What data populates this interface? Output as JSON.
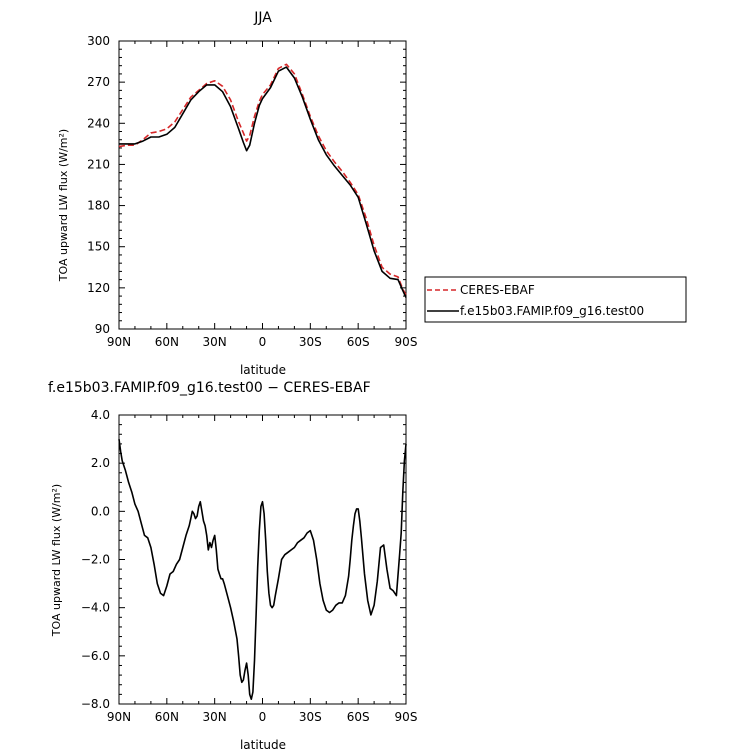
{
  "chart_data": [
    {
      "type": "line",
      "title": "JJA",
      "xlabel": "latitude",
      "ylabel": "TOA upward LW flux (W/m²)",
      "xlim": [
        90,
        -90
      ],
      "ylim": [
        90,
        300
      ],
      "x_ticks": [
        90,
        60,
        30,
        0,
        -30,
        -60,
        -90
      ],
      "x_tick_labels": [
        "90N",
        "60N",
        "30N",
        "0",
        "30S",
        "60S",
        "90S"
      ],
      "y_ticks": [
        90,
        120,
        150,
        180,
        210,
        240,
        270,
        300
      ],
      "y_tick_labels": [
        "90",
        "120",
        "150",
        "180",
        "210",
        "240",
        "270",
        "300"
      ],
      "legend_position": "right",
      "series": [
        {
          "name": "CERES-EBAF",
          "color": "#d62728",
          "dash": "dashed",
          "x": [
            90,
            85,
            80,
            75,
            70,
            65,
            60,
            55,
            50,
            45,
            40,
            35,
            30,
            25,
            20,
            15,
            12,
            10,
            8,
            5,
            2,
            0,
            -5,
            -10,
            -15,
            -20,
            -25,
            -30,
            -35,
            -40,
            -45,
            -50,
            -55,
            -60,
            -65,
            -70,
            -75,
            -80,
            -85,
            -88,
            -90
          ],
          "y": [
            223,
            224,
            224,
            228,
            233,
            234,
            236,
            241,
            250,
            259,
            264,
            269,
            271,
            267,
            257,
            241,
            233,
            227,
            231,
            245,
            256,
            261,
            268,
            280,
            283,
            276,
            261,
            245,
            231,
            220,
            212,
            205,
            197,
            188,
            171,
            151,
            135,
            130,
            128,
            119,
            115
          ]
        },
        {
          "name": "f.e15b03.FAMIP.f09_g16.test00",
          "color": "#000000",
          "dash": "solid",
          "x": [
            90,
            85,
            80,
            75,
            70,
            65,
            60,
            55,
            50,
            45,
            40,
            35,
            30,
            25,
            20,
            15,
            12,
            10,
            8,
            5,
            2,
            0,
            -5,
            -10,
            -15,
            -20,
            -25,
            -30,
            -35,
            -40,
            -45,
            -50,
            -55,
            -60,
            -65,
            -70,
            -75,
            -80,
            -85,
            -88,
            -90
          ],
          "y": [
            225,
            225,
            225,
            227,
            230,
            230,
            232,
            237,
            247,
            257,
            263,
            268,
            268,
            263,
            252,
            236,
            226,
            220,
            224,
            240,
            253,
            258,
            266,
            278,
            281,
            273,
            259,
            243,
            228,
            217,
            209,
            202,
            195,
            186,
            167,
            147,
            132,
            127,
            126,
            118,
            113
          ]
        }
      ]
    },
    {
      "type": "line",
      "title": "f.e15b03.FAMIP.f09_g16.test00 − CERES-EBAF",
      "xlabel": "latitude",
      "ylabel": "TOA upward LW flux (W/m²)",
      "xlim": [
        90,
        -90
      ],
      "ylim": [
        -8.0,
        4.0
      ],
      "x_ticks": [
        90,
        60,
        30,
        0,
        -30,
        -60,
        -90
      ],
      "x_tick_labels": [
        "90N",
        "60N",
        "30N",
        "0",
        "30S",
        "60S",
        "90S"
      ],
      "y_ticks": [
        -8.0,
        -6.0,
        -4.0,
        -2.0,
        0.0,
        2.0,
        4.0
      ],
      "y_tick_labels": [
        "−8.0",
        "−6.0",
        "−4.0",
        "−2.0",
        "0.0",
        "2.0",
        "4.0"
      ],
      "series": [
        {
          "color": "#000000",
          "x": [
            90,
            89,
            88,
            86,
            84,
            82,
            80,
            78,
            76,
            74,
            72,
            70,
            68,
            66,
            64,
            62,
            60,
            58,
            56,
            54,
            52,
            50,
            48,
            46,
            45,
            44,
            43,
            42,
            41,
            40,
            39,
            38,
            37,
            36,
            35,
            34,
            33,
            32,
            31,
            30,
            29,
            28,
            27,
            26,
            25,
            24,
            22,
            20,
            18,
            16,
            15,
            14,
            13,
            12,
            11,
            10,
            9,
            8,
            7,
            6,
            5,
            4,
            3,
            2,
            1,
            0,
            -1,
            -2,
            -3,
            -4,
            -5,
            -6,
            -7,
            -8,
            -10,
            -12,
            -14,
            -16,
            -18,
            -20,
            -22,
            -24,
            -26,
            -28,
            -30,
            -32,
            -34,
            -36,
            -38,
            -40,
            -42,
            -44,
            -46,
            -48,
            -50,
            -52,
            -54,
            -55,
            -56,
            -57,
            -58,
            -59,
            -60,
            -61,
            -62,
            -64,
            -66,
            -68,
            -70,
            -72,
            -74,
            -76,
            -78,
            -80,
            -82,
            -84,
            -86,
            -87,
            -88,
            -89,
            -90
          ],
          "y": [
            3.0,
            2.5,
            2.1,
            1.7,
            1.2,
            0.8,
            0.3,
            0.0,
            -0.5,
            -1.0,
            -1.1,
            -1.5,
            -2.2,
            -3.0,
            -3.4,
            -3.5,
            -3.1,
            -2.6,
            -2.5,
            -2.2,
            -2.0,
            -1.5,
            -1.0,
            -0.6,
            -0.3,
            0.0,
            -0.1,
            -0.3,
            -0.2,
            0.2,
            0.4,
            0.0,
            -0.4,
            -0.6,
            -1.0,
            -1.6,
            -1.3,
            -1.5,
            -1.2,
            -1.0,
            -1.6,
            -2.4,
            -2.6,
            -2.8,
            -2.8,
            -3.0,
            -3.5,
            -4.0,
            -4.6,
            -5.3,
            -6.0,
            -6.8,
            -7.1,
            -7.0,
            -6.6,
            -6.3,
            -6.8,
            -7.6,
            -7.8,
            -7.5,
            -6.2,
            -4.3,
            -2.3,
            -0.8,
            0.2,
            0.4,
            -0.1,
            -1.2,
            -2.5,
            -3.4,
            -3.9,
            -4.0,
            -3.9,
            -3.5,
            -2.8,
            -2.0,
            -1.8,
            -1.7,
            -1.6,
            -1.5,
            -1.3,
            -1.2,
            -1.1,
            -0.9,
            -0.8,
            -1.2,
            -2.0,
            -3.0,
            -3.7,
            -4.1,
            -4.2,
            -4.1,
            -3.9,
            -3.8,
            -3.8,
            -3.5,
            -2.7,
            -2.0,
            -1.2,
            -0.6,
            -0.1,
            0.1,
            0.1,
            -0.4,
            -1.1,
            -2.6,
            -3.7,
            -4.3,
            -3.9,
            -2.9,
            -1.5,
            -1.4,
            -2.4,
            -3.2,
            -3.3,
            -3.5,
            -1.8,
            -0.9,
            0.8,
            2.1,
            2.8
          ]
        }
      ]
    }
  ],
  "legend": {
    "labels": [
      "CERES-EBAF",
      "f.e15b03.FAMIP.f09_g16.test00"
    ]
  }
}
